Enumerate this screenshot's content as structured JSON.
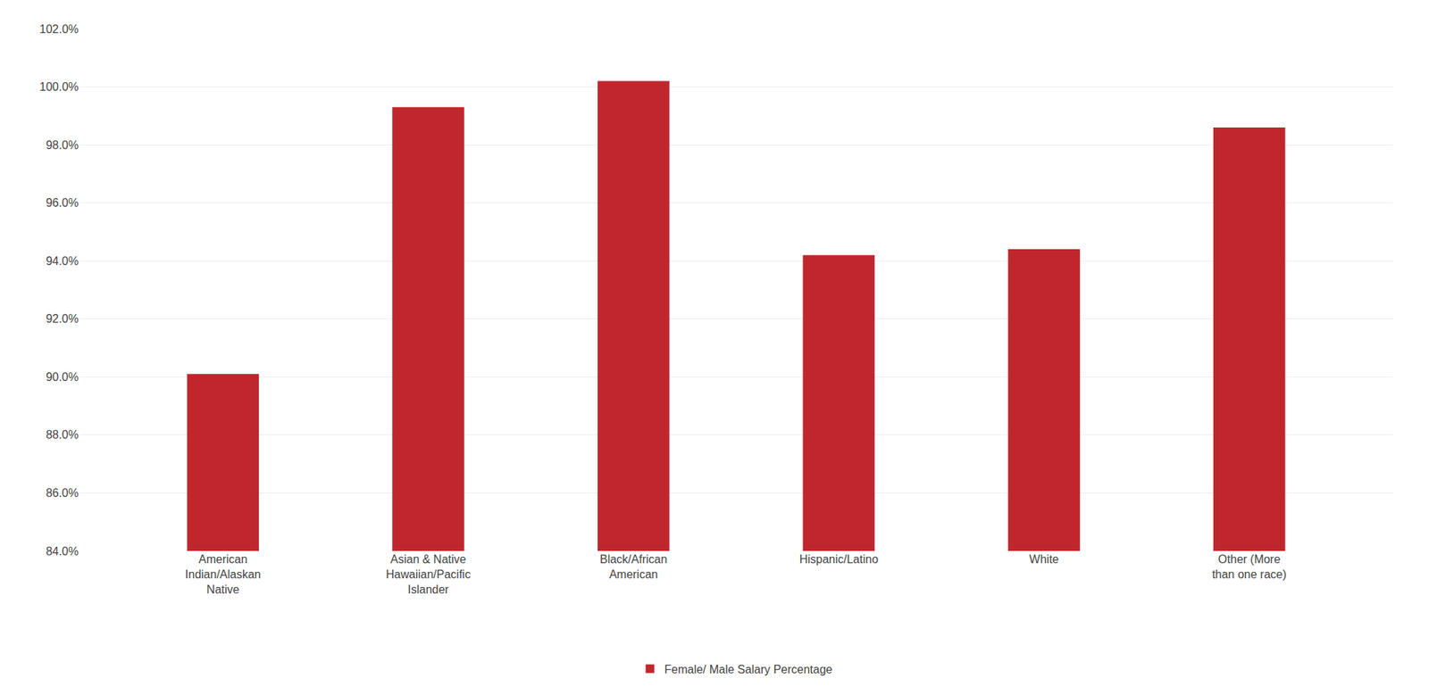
{
  "chart_data": {
    "type": "bar",
    "categories": [
      "American\nIndian/Alaskan\nNative",
      "Asian & Native\nHawaiian/Pacific\nIslander",
      "Black/African\nAmerican",
      "Hispanic/Latino",
      "White",
      "Other (More\nthan one race)"
    ],
    "series": [
      {
        "name": "Female/ Male Salary Percentage",
        "color": "#C0272D",
        "values": [
          90.1,
          99.3,
          100.2,
          94.2,
          94.4,
          98.6
        ]
      }
    ],
    "ylim": [
      84.0,
      102.0
    ],
    "yticks": [
      {
        "value": 84.0,
        "label": "84.0%"
      },
      {
        "value": 86.0,
        "label": "86.0%"
      },
      {
        "value": 88.0,
        "label": "88.0%"
      },
      {
        "value": 90.0,
        "label": "90.0%"
      },
      {
        "value": 92.0,
        "label": "92.0%"
      },
      {
        "value": 94.0,
        "label": "94.0%"
      },
      {
        "value": 96.0,
        "label": "96.0%"
      },
      {
        "value": 98.0,
        "label": "98.0%"
      },
      {
        "value": 100.0,
        "label": "100.0%"
      },
      {
        "value": 102.0,
        "label": "102.0%"
      }
    ],
    "grid": true,
    "legend": "bottom"
  }
}
